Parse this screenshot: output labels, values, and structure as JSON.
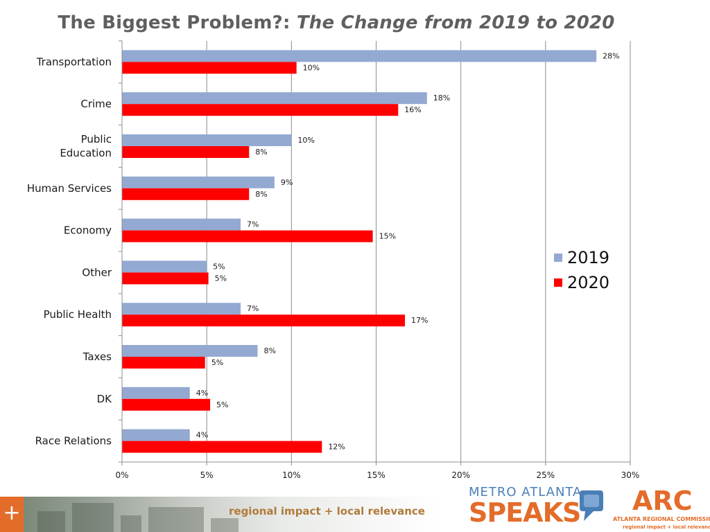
{
  "title": {
    "main": "The Biggest Problem?:",
    "subtitle": "The Change from 2019 to 2020",
    "color": "#5f5f5f"
  },
  "chart_data": {
    "type": "bar",
    "orientation": "horizontal",
    "categories": [
      "Transportation",
      "Crime",
      "Public Education",
      "Human Services",
      "Economy",
      "Other",
      "Public Health",
      "Taxes",
      "DK",
      "Race Relations"
    ],
    "category_lines": [
      [
        "Transportation"
      ],
      [
        "Crime"
      ],
      [
        "Public",
        "Education"
      ],
      [
        "Human Services"
      ],
      [
        "Economy"
      ],
      [
        "Other"
      ],
      [
        "Public Health"
      ],
      [
        "Taxes"
      ],
      [
        "DK"
      ],
      [
        "Race Relations"
      ]
    ],
    "series": [
      {
        "name": "2019",
        "color": "#93a9d1",
        "values": [
          28,
          18,
          10,
          9,
          7,
          5,
          7,
          8,
          4,
          4
        ],
        "labels": [
          "28%",
          "18%",
          "10%",
          "9%",
          "7%",
          "5%",
          "7%",
          "8%",
          "4%",
          "4%"
        ]
      },
      {
        "name": "2020",
        "color": "#ff0000",
        "values": [
          10.3,
          16.3,
          7.5,
          7.5,
          14.8,
          5.1,
          16.7,
          4.9,
          5.2,
          11.8
        ],
        "labels": [
          "10%",
          "16%",
          "8%",
          "8%",
          "15%",
          "5%",
          "17%",
          "5%",
          "5%",
          "12%"
        ]
      }
    ],
    "xlim": [
      0,
      30
    ],
    "xticks": [
      0,
      5,
      10,
      15,
      20,
      25,
      30
    ],
    "xtick_labels": [
      "0%",
      "5%",
      "10%",
      "15%",
      "20%",
      "25%",
      "30%"
    ],
    "grid": true,
    "legend": "right"
  },
  "footer": {
    "plus": "+",
    "tagline": "regional impact + local relevance",
    "metro_top": "METRO ATLANTA",
    "metro_bottom": "SPEAKS",
    "arc_letters": "ARC",
    "arc_name": "ATLANTA REGIONAL COMMISSION",
    "arc_tagline": "regional impact + local relevance",
    "accent": "#e36c2a"
  }
}
